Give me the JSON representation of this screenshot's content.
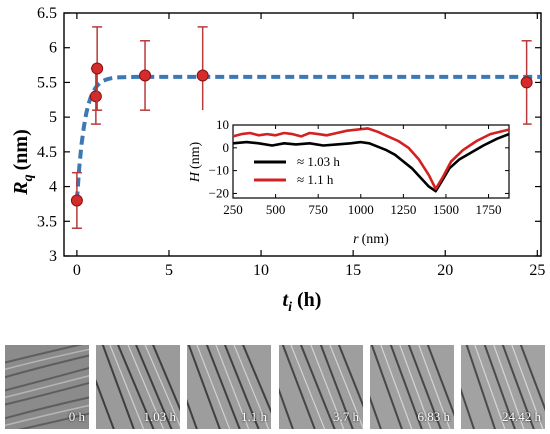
{
  "chart_data": [
    {
      "type": "scatter",
      "ylabel": "R",
      "ylabel_sub": "q",
      "ylabel_unit": "(nm)",
      "xlabel": "t",
      "xlabel_sub": "i",
      "xlabel_unit": "(h)",
      "xlim": [
        -0.7,
        25.2
      ],
      "ylim": [
        3,
        6.5
      ],
      "xticks": [
        0,
        5,
        10,
        15,
        20,
        25
      ],
      "yticks": [
        3,
        3.5,
        4,
        4.5,
        5,
        5.5,
        6,
        6.5
      ],
      "yticklabels": [
        "3",
        "3.5",
        "4",
        "4.5",
        "5",
        "5.5",
        "6",
        "6.5"
      ],
      "points": [
        {
          "x": 0,
          "y": 3.8,
          "err": 0.4
        },
        {
          "x": 1.03,
          "y": 5.3,
          "err": 0.4
        },
        {
          "x": 1.1,
          "y": 5.7,
          "err": 0.6
        },
        {
          "x": 3.7,
          "y": 5.6,
          "err": 0.5
        },
        {
          "x": 6.83,
          "y": 5.6,
          "err": 0.7
        },
        {
          "x": 24.42,
          "y": 5.5,
          "err": 0.6
        }
      ],
      "fit": {
        "style": "dashed",
        "color": "#3b78b5",
        "plateau": 5.58,
        "start": 3.8,
        "rate": 2.4
      },
      "marker_color": "#d42b2b",
      "errorbar_color": "#b83a3a",
      "grid": false
    },
    {
      "type": "line",
      "xlabel": "r",
      "xlabel_unit": "(nm)",
      "ylabel": "H",
      "ylabel_unit": "(nm)",
      "xlim": [
        250,
        1870
      ],
      "ylim": [
        -22,
        10
      ],
      "xticks": [
        250,
        500,
        750,
        1000,
        1250,
        1500,
        1750
      ],
      "xticklabels": [
        "250",
        "500",
        "750",
        "1000",
        "1250",
        "1500",
        "1750"
      ],
      "yticks": [
        -20,
        -10,
        0,
        10
      ],
      "yticklabels": [
        "−20",
        "−10",
        "0",
        "10"
      ],
      "legend_position": "left",
      "series": [
        {
          "name": "≈ 1.03 h",
          "color": "#000000",
          "x": [
            250,
            330,
            400,
            480,
            550,
            620,
            700,
            780,
            860,
            940,
            1000,
            1050,
            1100,
            1150,
            1200,
            1250,
            1300,
            1350,
            1400,
            1440,
            1480,
            1520,
            1580,
            1650,
            1720,
            1800,
            1870
          ],
          "y": [
            2,
            2.5,
            2,
            1,
            2,
            1.5,
            2,
            1,
            1.5,
            2,
            2.5,
            2,
            0.5,
            -1,
            -3,
            -6,
            -9,
            -13,
            -17,
            -19,
            -14,
            -9,
            -5,
            -2,
            1,
            4,
            6
          ]
        },
        {
          "name": "≈ 1.1 h",
          "color": "#d42020",
          "x": [
            250,
            300,
            350,
            400,
            450,
            500,
            550,
            600,
            650,
            700,
            750,
            800,
            860,
            920,
            980,
            1040,
            1100,
            1160,
            1220,
            1280,
            1340,
            1400,
            1440,
            1480,
            1530,
            1600,
            1680,
            1760,
            1870
          ],
          "y": [
            5,
            6,
            6.5,
            5.5,
            6,
            5.5,
            6.5,
            6,
            5,
            6.5,
            6,
            5.5,
            6.5,
            7.5,
            8,
            8.5,
            7,
            5,
            3,
            0,
            -5,
            -12,
            -18,
            -13,
            -6,
            -1,
            3,
            6,
            8
          ]
        }
      ]
    }
  ],
  "thumbnails": [
    {
      "label": "0 h"
    },
    {
      "label": "1.03 h"
    },
    {
      "label": "1.1 h"
    },
    {
      "label": "3.7 h"
    },
    {
      "label": "6.83 h"
    },
    {
      "label": "24.42 h"
    }
  ]
}
